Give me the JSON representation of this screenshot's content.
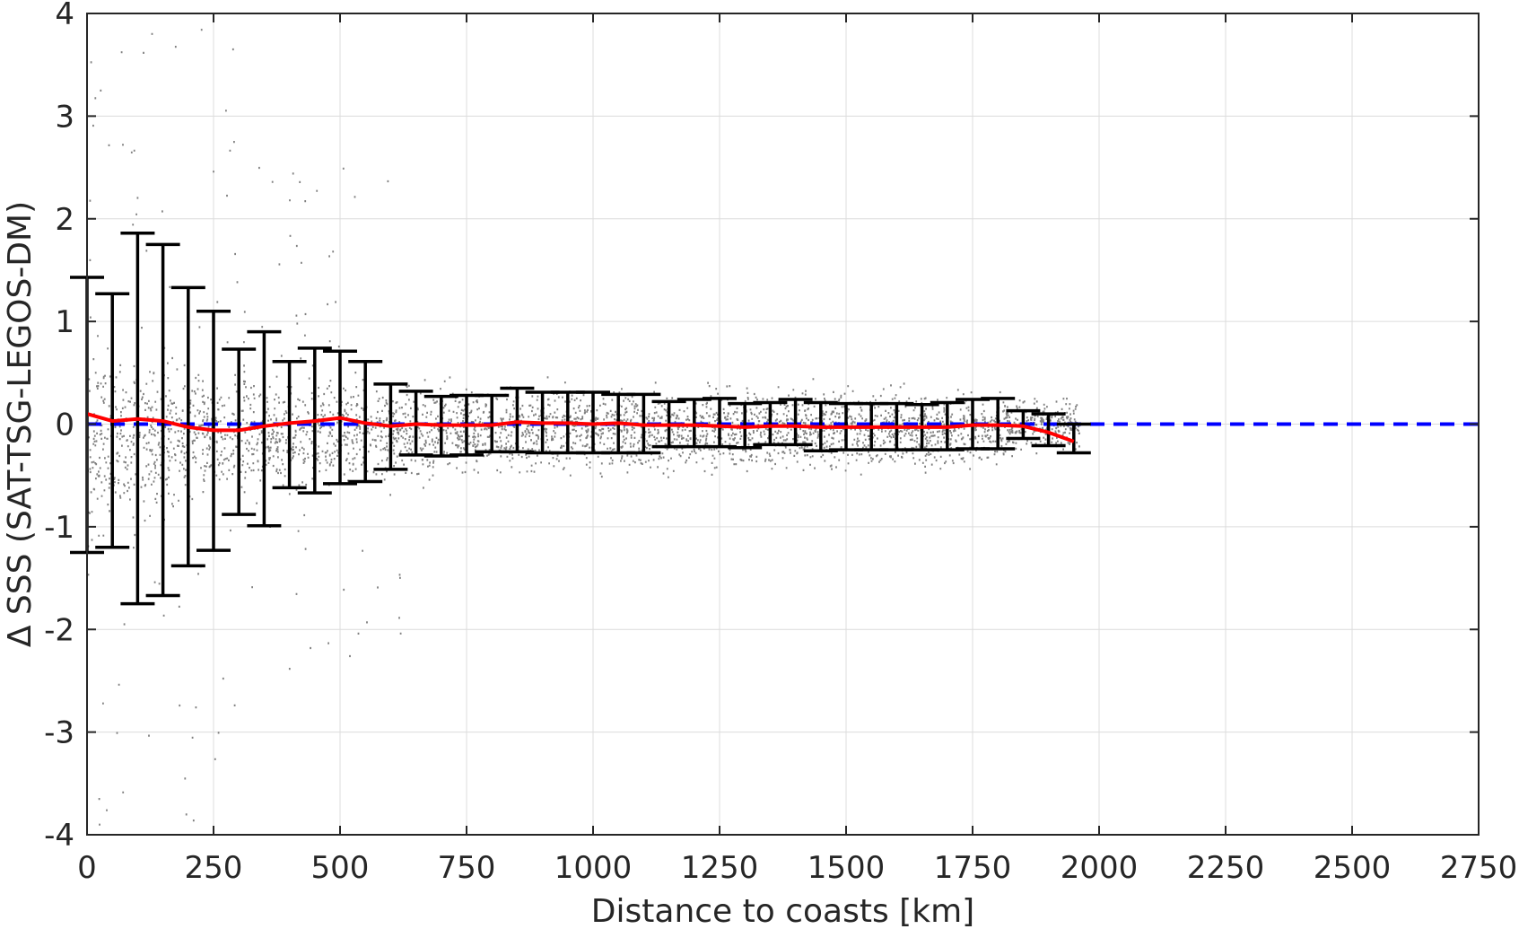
{
  "chart_data": {
    "type": "scatter",
    "title": "",
    "xlabel": "Distance to coasts [km]",
    "ylabel": "Δ SSS (SAT-TSG-LEGOS-DM)",
    "xlim": [
      0,
      2750
    ],
    "ylim": [
      -4,
      4
    ],
    "xticks": [
      0,
      250,
      500,
      750,
      1000,
      1250,
      1500,
      1750,
      2000,
      2250,
      2500,
      2750
    ],
    "yticks": [
      -4,
      -3,
      -2,
      -1,
      0,
      1,
      2,
      3,
      4
    ],
    "grid": true,
    "legend": "none",
    "colors": {
      "scatter": "#808080",
      "mean_line": "#ff0000",
      "zero_line": "#0000ff",
      "error_bars": "#000000",
      "grid": "#dcdcdc",
      "axes": "#262626"
    },
    "scatter_note_values": {
      "spread_envelope": [
        {
          "x": 0,
          "lo": -1.3,
          "hi": 1.0
        },
        {
          "x": 250,
          "lo": -0.9,
          "hi": 0.7
        },
        {
          "x": 500,
          "lo": -0.8,
          "hi": 0.6
        },
        {
          "x": 750,
          "lo": -0.6,
          "hi": 0.5
        },
        {
          "x": 1000,
          "lo": -0.6,
          "hi": 0.5
        },
        {
          "x": 1250,
          "lo": -0.6,
          "hi": 0.5
        },
        {
          "x": 1500,
          "lo": -0.6,
          "hi": 0.5
        },
        {
          "x": 1750,
          "lo": -0.5,
          "hi": 0.4
        },
        {
          "x": 1950,
          "lo": -0.3,
          "hi": 0.3
        }
      ]
    },
    "mean_line": {
      "x": [
        0,
        50,
        100,
        150,
        200,
        250,
        300,
        350,
        400,
        450,
        500,
        550,
        600,
        650,
        700,
        750,
        800,
        850,
        900,
        950,
        1000,
        1050,
        1100,
        1150,
        1200,
        1250,
        1300,
        1350,
        1400,
        1450,
        1500,
        1550,
        1600,
        1650,
        1700,
        1750,
        1800,
        1850,
        1900,
        1950
      ],
      "y": [
        0.1,
        0.03,
        0.05,
        0.03,
        -0.03,
        -0.06,
        -0.06,
        -0.02,
        0.01,
        0.03,
        0.06,
        0.01,
        -0.02,
        0.0,
        -0.01,
        -0.01,
        -0.01,
        0.02,
        0.01,
        0.01,
        0.0,
        0.01,
        -0.01,
        -0.01,
        -0.01,
        -0.02,
        -0.03,
        -0.02,
        -0.02,
        -0.03,
        -0.03,
        -0.03,
        -0.03,
        -0.03,
        -0.03,
        -0.01,
        -0.01,
        -0.02,
        -0.08,
        -0.17
      ]
    },
    "error_bars": [
      {
        "x": 0,
        "lo": -1.25,
        "hi": 1.43
      },
      {
        "x": 50,
        "lo": -1.2,
        "hi": 1.27
      },
      {
        "x": 100,
        "lo": -1.75,
        "hi": 1.86
      },
      {
        "x": 150,
        "lo": -1.67,
        "hi": 1.75
      },
      {
        "x": 200,
        "lo": -1.38,
        "hi": 1.33
      },
      {
        "x": 250,
        "lo": -1.23,
        "hi": 1.1
      },
      {
        "x": 300,
        "lo": -0.88,
        "hi": 0.73
      },
      {
        "x": 350,
        "lo": -0.99,
        "hi": 0.9
      },
      {
        "x": 400,
        "lo": -0.62,
        "hi": 0.61
      },
      {
        "x": 450,
        "lo": -0.67,
        "hi": 0.74
      },
      {
        "x": 500,
        "lo": -0.58,
        "hi": 0.71
      },
      {
        "x": 550,
        "lo": -0.56,
        "hi": 0.61
      },
      {
        "x": 600,
        "lo": -0.44,
        "hi": 0.39
      },
      {
        "x": 650,
        "lo": -0.3,
        "hi": 0.32
      },
      {
        "x": 700,
        "lo": -0.31,
        "hi": 0.27
      },
      {
        "x": 750,
        "lo": -0.3,
        "hi": 0.28
      },
      {
        "x": 800,
        "lo": -0.27,
        "hi": 0.28
      },
      {
        "x": 850,
        "lo": -0.27,
        "hi": 0.35
      },
      {
        "x": 900,
        "lo": -0.28,
        "hi": 0.31
      },
      {
        "x": 950,
        "lo": -0.28,
        "hi": 0.31
      },
      {
        "x": 1000,
        "lo": -0.28,
        "hi": 0.31
      },
      {
        "x": 1050,
        "lo": -0.28,
        "hi": 0.29
      },
      {
        "x": 1100,
        "lo": -0.28,
        "hi": 0.29
      },
      {
        "x": 1150,
        "lo": -0.22,
        "hi": 0.22
      },
      {
        "x": 1200,
        "lo": -0.22,
        "hi": 0.24
      },
      {
        "x": 1250,
        "lo": -0.22,
        "hi": 0.25
      },
      {
        "x": 1300,
        "lo": -0.23,
        "hi": 0.2
      },
      {
        "x": 1350,
        "lo": -0.2,
        "hi": 0.21
      },
      {
        "x": 1400,
        "lo": -0.2,
        "hi": 0.24
      },
      {
        "x": 1450,
        "lo": -0.26,
        "hi": 0.21
      },
      {
        "x": 1500,
        "lo": -0.25,
        "hi": 0.2
      },
      {
        "x": 1550,
        "lo": -0.25,
        "hi": 0.2
      },
      {
        "x": 1600,
        "lo": -0.25,
        "hi": 0.2
      },
      {
        "x": 1650,
        "lo": -0.25,
        "hi": 0.19
      },
      {
        "x": 1700,
        "lo": -0.25,
        "hi": 0.21
      },
      {
        "x": 1750,
        "lo": -0.24,
        "hi": 0.24
      },
      {
        "x": 1800,
        "lo": -0.24,
        "hi": 0.25
      },
      {
        "x": 1850,
        "lo": -0.14,
        "hi": 0.13
      },
      {
        "x": 1900,
        "lo": -0.21,
        "hi": 0.1
      },
      {
        "x": 1950,
        "lo": -0.28,
        "hi": 0.0
      }
    ],
    "zero_line": {
      "y": 0
    }
  }
}
